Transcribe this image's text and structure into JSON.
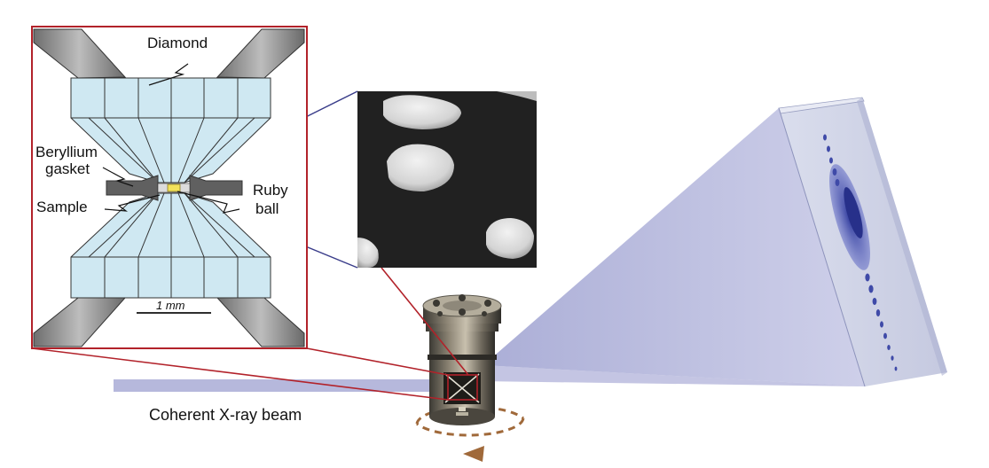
{
  "labels": {
    "diamond": "Diamond",
    "beryllium": "Beryllium",
    "gasket": "gasket",
    "sample": "Sample",
    "ruby": "Ruby",
    "ball": "ball",
    "scale": "1 mm",
    "beam": "Coherent X-ray beam"
  },
  "colors": {
    "frame_red": "#b2222a",
    "zoom_line_blue": "#3a3d8a",
    "diamond_fill": "#cfe8f2",
    "anvil_grey": "#8a8a8a",
    "gasket_grey": "#606060",
    "sample_yellow": "#f2e25a",
    "beam_blue": "#a9abd6",
    "rotation_arrow": "#a0693a",
    "speckle_blue": "#4a54b0"
  }
}
